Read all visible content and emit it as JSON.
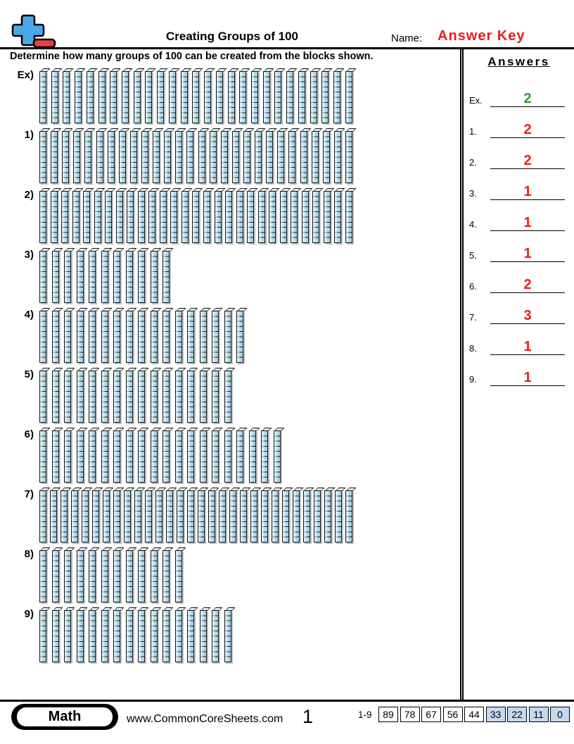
{
  "header": {
    "title": "Creating Groups of 100",
    "name_label": "Name:",
    "name_value": "Answer Key"
  },
  "instruction": "Determine how many groups of 100 can be created from the blocks shown.",
  "problems": [
    {
      "label": "Ex)",
      "rods": 27,
      "blocks_per_rod": 10,
      "total_blocks": 270
    },
    {
      "label": "1)",
      "rods": 28,
      "blocks_per_rod": 10,
      "total_blocks": 280
    },
    {
      "label": "2)",
      "rods": 29,
      "blocks_per_rod": 10,
      "total_blocks": 290
    },
    {
      "label": "3)",
      "rods": 11,
      "blocks_per_rod": 10,
      "total_blocks": 110
    },
    {
      "label": "4)",
      "rods": 17,
      "blocks_per_rod": 10,
      "total_blocks": 170
    },
    {
      "label": "5)",
      "rods": 16,
      "blocks_per_rod": 10,
      "total_blocks": 160
    },
    {
      "label": "6)",
      "rods": 20,
      "blocks_per_rod": 10,
      "total_blocks": 200
    },
    {
      "label": "7)",
      "rods": 30,
      "blocks_per_rod": 10,
      "total_blocks": 300
    },
    {
      "label": "8)",
      "rods": 12,
      "blocks_per_rod": 10,
      "total_blocks": 120
    },
    {
      "label": "9)",
      "rods": 16,
      "blocks_per_rod": 10,
      "total_blocks": 160
    }
  ],
  "answers_panel": {
    "title": "Answers",
    "items": [
      {
        "label": "Ex.",
        "value": "2",
        "color": "green"
      },
      {
        "label": "1.",
        "value": "2",
        "color": "red"
      },
      {
        "label": "2.",
        "value": "2",
        "color": "red"
      },
      {
        "label": "3.",
        "value": "1",
        "color": "red"
      },
      {
        "label": "4.",
        "value": "1",
        "color": "red"
      },
      {
        "label": "5.",
        "value": "1",
        "color": "red"
      },
      {
        "label": "6.",
        "value": "2",
        "color": "red"
      },
      {
        "label": "7.",
        "value": "3",
        "color": "red"
      },
      {
        "label": "8.",
        "value": "1",
        "color": "red"
      },
      {
        "label": "9.",
        "value": "1",
        "color": "red"
      }
    ]
  },
  "footer": {
    "subject_badge": "Math",
    "website": "www.CommonCoreSheets.com",
    "page_number": "1",
    "score_table": {
      "label": "1-9",
      "cells": [
        {
          "value": "89",
          "highlighted": false
        },
        {
          "value": "78",
          "highlighted": false
        },
        {
          "value": "67",
          "highlighted": false
        },
        {
          "value": "56",
          "highlighted": false
        },
        {
          "value": "44",
          "highlighted": false
        },
        {
          "value": "33",
          "highlighted": true
        },
        {
          "value": "22",
          "highlighted": true
        },
        {
          "value": "11",
          "highlighted": true
        },
        {
          "value": "0",
          "highlighted": true
        }
      ]
    }
  },
  "colors": {
    "block_fill": "#a9d7eb",
    "block_cap": "#ededed",
    "answer_green": "#2f9e2f",
    "answer_red": "#ee1b1b",
    "logo_blue": "#4aa8e8",
    "logo_red": "#e8423a",
    "score_highlight": "#c3d9f0"
  }
}
